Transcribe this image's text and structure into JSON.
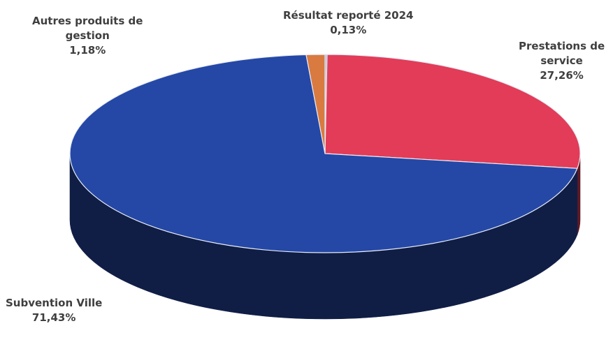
{
  "chart_data": {
    "type": "pie",
    "style": "3d",
    "slices": [
      {
        "name": "Résultat reporté 2024",
        "value": 0.13,
        "value_label": "0,13%",
        "label_lines": [
          "Résultat reporté 2024"
        ],
        "color": "#a9b3d2"
      },
      {
        "name": "Prestations de service",
        "value": 27.26,
        "value_label": "27,26%",
        "label_lines": [
          "Prestations de",
          "service"
        ],
        "color": "#e23c58"
      },
      {
        "name": "Subvention Ville",
        "value": 71.43,
        "value_label": "71,43%",
        "label_lines": [
          "Subvention Ville"
        ],
        "color": "#2548a6"
      },
      {
        "name": "Autres produits de gestion",
        "value": 1.18,
        "value_label": "1,18%",
        "label_lines": [
          "Autres produits de",
          "gestion"
        ],
        "color": "#d97a40"
      }
    ]
  }
}
